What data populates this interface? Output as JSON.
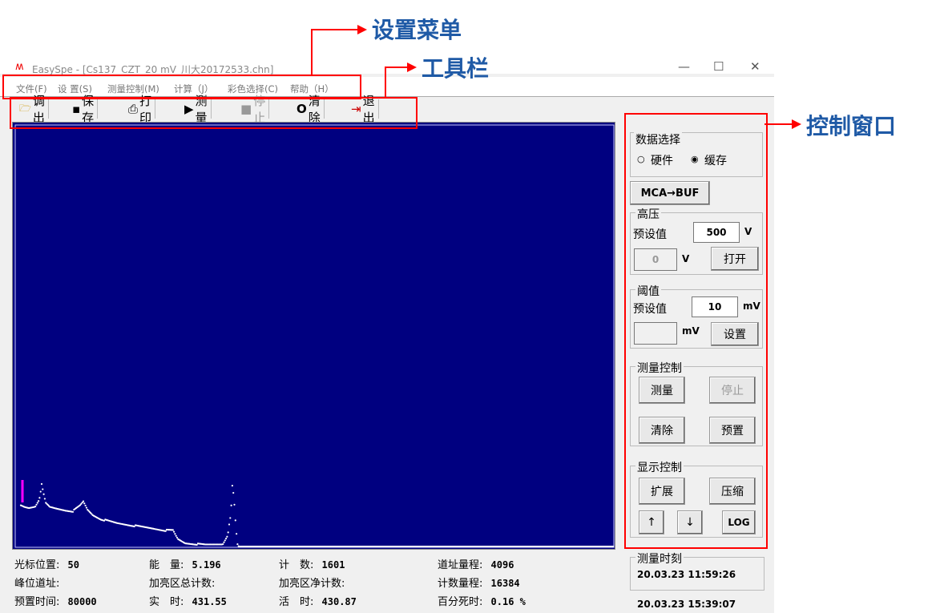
{
  "window": {
    "title": "EasySpe - [Cs137_CZT_20 mV_川大20172533.chn]",
    "minimize": "—",
    "maximize": "☐",
    "close": "✕"
  },
  "menu": [
    "文件(F)",
    "设  置(S)",
    "测量控制(M)",
    "计算（J）",
    "彩色选择(C)",
    "帮助（H）"
  ],
  "toolbar": [
    {
      "icon": "folder-open-icon",
      "glyph": "📂",
      "label": "调出"
    },
    {
      "icon": "floppy-icon",
      "glyph": "▪",
      "label": "保存"
    },
    {
      "icon": "printer-icon",
      "glyph": "⎙",
      "label": "打印"
    },
    {
      "icon": "play-icon",
      "glyph": "▶",
      "label": "测量"
    },
    {
      "icon": "stop-icon",
      "glyph": "■",
      "label": "停止",
      "disabled": true
    },
    {
      "icon": "circle-icon",
      "glyph": "O",
      "label": "清除"
    },
    {
      "icon": "exit-icon",
      "glyph": "⇥",
      "label": "退出"
    }
  ],
  "status": {
    "r1": [
      [
        "光标位置:",
        "50"
      ],
      [
        "能　量:",
        "5.196"
      ],
      [
        "计　数:",
        "1601"
      ],
      [
        "道址量程:",
        "4096"
      ]
    ],
    "r2": [
      [
        "峰位道址:",
        ""
      ],
      [
        "加亮区总计数:",
        ""
      ],
      [
        "加亮区净计数:",
        ""
      ],
      [
        "计数量程:",
        "16384"
      ]
    ],
    "r3": [
      [
        "预置时间:",
        "80000"
      ],
      [
        "实　时:",
        "431.55"
      ],
      [
        "活　时:",
        "430.87"
      ],
      [
        "百分死时:",
        "0.16  %"
      ]
    ]
  },
  "panel": {
    "data_select": {
      "title": "数据选择",
      "opt1": "硬件",
      "opt2": "缓存",
      "selected": "缓存"
    },
    "mca_buf": "MCA→BUF",
    "hv": {
      "title": "高压",
      "preset_label": "预设值",
      "preset": "500",
      "unit": "V",
      "current": "0",
      "unit2": "V",
      "button": "打开"
    },
    "thr": {
      "title": "阈值",
      "preset_label": "预设值",
      "preset": "10",
      "unit": "mV",
      "current": "",
      "unit2": "mV",
      "button": "设置"
    },
    "meas": {
      "title": "测量控制",
      "measure": "测量",
      "stop": "停止",
      "clear": "清除",
      "preset": "预置"
    },
    "disp": {
      "title": "显示控制",
      "expand": "扩展",
      "compress": "压缩",
      "up": "↑",
      "down": "↓",
      "log": "LOG"
    },
    "time": {
      "title": "测量时刻",
      "start": "20.03.23   11:59:26",
      "now": "20.03.23   15:39:07"
    }
  },
  "annotations": {
    "menu": "设置菜单",
    "toolbar": "工具栏",
    "control": "控制窗口"
  },
  "colors": {
    "plot_bg": "#000080",
    "trace": "#ffffff",
    "cursor": "#ff00ff",
    "annotation": "#ff0000",
    "annotation_text": "#1f5aa6"
  }
}
